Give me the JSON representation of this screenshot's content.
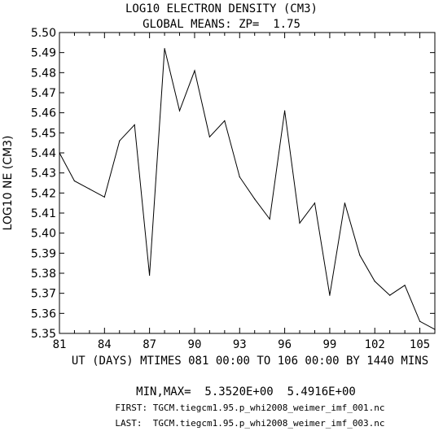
{
  "chart_data": {
    "type": "line",
    "title": "LOG10 ELECTRON DENSITY (CM3)",
    "subtitle": "GLOBAL MEANS: ZP=  1.75",
    "xlabel": "UT (DAYS) MTIMES 081 00:00 TO 106 00:00 BY 1440 MINS",
    "ylabel": "LOG10 NE (CM3)",
    "xlim": [
      81,
      106
    ],
    "ylim": [
      5.35,
      5.5
    ],
    "x_ticks": [
      81,
      84,
      87,
      90,
      93,
      96,
      99,
      102,
      105
    ],
    "y_ticks": [
      "5.35",
      "5.36",
      "5.37",
      "5.38",
      "5.39",
      "5.40",
      "5.41",
      "5.42",
      "5.43",
      "5.44",
      "5.45",
      "5.46",
      "5.47",
      "5.48",
      "5.49",
      "5.50"
    ],
    "x": [
      81,
      82,
      83,
      84,
      85,
      86,
      87,
      88,
      89,
      90,
      91,
      92,
      93,
      94,
      95,
      96,
      97,
      98,
      99,
      100,
      101,
      102,
      103,
      104,
      105,
      106
    ],
    "values": [
      5.44,
      5.426,
      5.422,
      5.418,
      5.446,
      5.454,
      5.379,
      5.492,
      5.461,
      5.481,
      5.448,
      5.456,
      5.428,
      5.417,
      5.407,
      5.461,
      5.405,
      5.415,
      5.369,
      5.415,
      5.389,
      5.376,
      5.369,
      5.374,
      5.356,
      5.352
    ],
    "grid": false,
    "legend": "none",
    "line_color": "#000000"
  },
  "footer": {
    "minmax": "MIN,MAX=  5.3520E+00  5.4916E+00",
    "first": "FIRST: TGCM.tiegcm1.95.p_whi2008_weimer_imf_001.nc",
    "last": "LAST:  TGCM.tiegcm1.95.p_whi2008_weimer_imf_003.nc"
  }
}
